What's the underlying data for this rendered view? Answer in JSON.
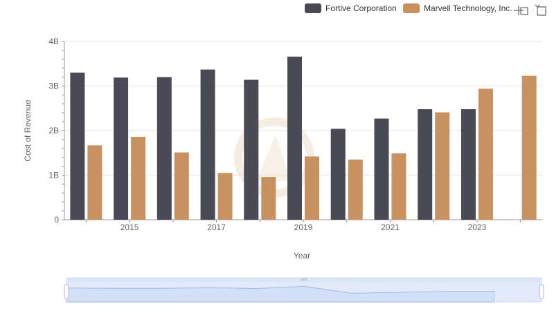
{
  "colors": {
    "fortive": "#4a4a56",
    "marvell": "#c89260",
    "grid": "#e6e6e6",
    "axis_text": "#666666",
    "zoom_fill": "#dfe8fb",
    "zoom_line": "#9cb4e8"
  },
  "toolbar": {
    "icons": [
      "zoom-icon",
      "restore-icon"
    ]
  },
  "chart_data": {
    "type": "bar",
    "xlabel": "Year",
    "ylabel": "Cost of Revenue",
    "ylim": [
      0,
      4
    ],
    "y_unit": "B",
    "y_ticks": [
      "0",
      "1B",
      "2B",
      "3B",
      "4B"
    ],
    "x_tick_labels": [
      "2015",
      "2017",
      "2019",
      "2021",
      "2023"
    ],
    "categories": [
      "2014",
      "2015",
      "2016",
      "2017",
      "2018",
      "2019",
      "2020",
      "2021",
      "2022",
      "2023",
      "2024"
    ],
    "legend_position": "top-right",
    "grid": true,
    "series": [
      {
        "name": "Fortive Corporation",
        "color": "#4a4a56",
        "values": [
          3.3,
          3.19,
          3.2,
          3.37,
          3.14,
          3.66,
          2.04,
          2.27,
          2.48,
          2.48,
          null
        ]
      },
      {
        "name": "Marvell Technology, Inc.",
        "color": "#c89260",
        "values": [
          1.67,
          1.86,
          1.51,
          1.05,
          0.96,
          1.42,
          1.35,
          1.49,
          2.41,
          2.94,
          3.23
        ]
      }
    ]
  }
}
